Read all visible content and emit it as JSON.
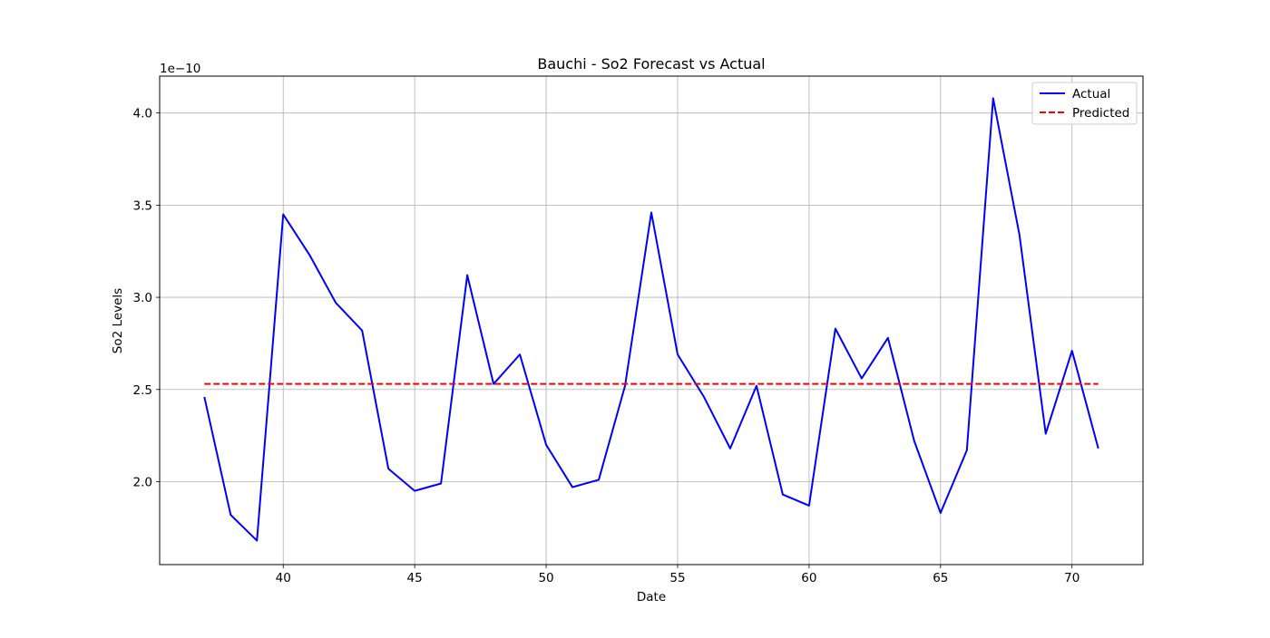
{
  "chart_data": {
    "type": "line",
    "title": "Bauchi - So2 Forecast vs Actual",
    "xlabel": "Date",
    "ylabel": "So2 Levels",
    "y_offset_label": "1e−10",
    "y_scale_factor": 1e-10,
    "xlim": [
      35.3,
      72.7
    ],
    "ylim": [
      1.55,
      4.2
    ],
    "x_ticks": [
      40,
      45,
      50,
      55,
      60,
      65,
      70
    ],
    "y_ticks": [
      2.0,
      2.5,
      3.0,
      3.5,
      4.0
    ],
    "x_tick_labels": [
      "40",
      "45",
      "50",
      "55",
      "60",
      "65",
      "70"
    ],
    "y_tick_labels": [
      "2.0",
      "2.5",
      "3.0",
      "3.5",
      "4.0"
    ],
    "grid": true,
    "legend_position": "top-right",
    "x": [
      37,
      38,
      39,
      40,
      41,
      42,
      43,
      44,
      45,
      46,
      47,
      48,
      49,
      50,
      51,
      52,
      53,
      54,
      55,
      56,
      57,
      58,
      59,
      60,
      61,
      62,
      63,
      64,
      65,
      66,
      67,
      68,
      69,
      70,
      71
    ],
    "series": [
      {
        "name": "Actual",
        "color": "#0000ff",
        "style": "solid",
        "values": [
          2.46,
          1.82,
          1.68,
          3.45,
          3.23,
          2.97,
          2.82,
          2.07,
          1.95,
          1.99,
          3.12,
          2.53,
          2.69,
          2.2,
          1.97,
          2.01,
          2.52,
          3.46,
          2.69,
          2.46,
          2.18,
          2.52,
          1.93,
          1.87,
          2.83,
          2.56,
          2.78,
          2.22,
          1.83,
          2.17,
          4.08,
          3.34,
          2.26,
          2.71,
          2.18
        ]
      },
      {
        "name": "Predicted",
        "color": "#ff0000",
        "style": "dashed",
        "values": [
          2.53,
          2.53,
          2.53,
          2.53,
          2.53,
          2.53,
          2.53,
          2.53,
          2.53,
          2.53,
          2.53,
          2.53,
          2.53,
          2.53,
          2.53,
          2.53,
          2.53,
          2.53,
          2.53,
          2.53,
          2.53,
          2.53,
          2.53,
          2.53,
          2.53,
          2.53,
          2.53,
          2.53,
          2.53,
          2.53,
          2.53,
          2.53,
          2.53,
          2.53,
          2.53
        ]
      }
    ]
  }
}
